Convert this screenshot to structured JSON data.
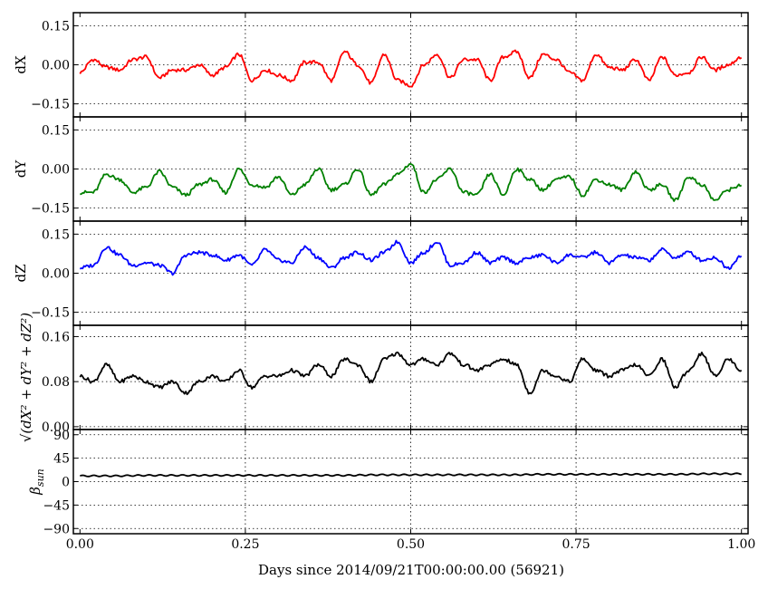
{
  "chart_data": {
    "type": "line",
    "xlabel": "Days since 2014/09/21T00:00:00.00 (56921)",
    "xlim": [
      -0.01,
      1.01
    ],
    "x_ticks": [
      0.0,
      0.25,
      0.5,
      0.75,
      1.0
    ],
    "x_tick_labels": [
      "0.00",
      "0.25",
      "0.50",
      "0.75",
      "1.00"
    ],
    "grid": true,
    "panels": [
      {
        "id": "dx",
        "ylabel": "dX",
        "ylim": [
          -0.2,
          0.2
        ],
        "y_ticks": [
          0.15,
          0.0,
          -0.15
        ],
        "y_tick_labels": [
          "0.15",
          "0.00",
          "−0.15"
        ],
        "color": "#ff0000",
        "series": [
          {
            "x": [
              0.0,
              0.02,
              0.04,
              0.06,
              0.08,
              0.1,
              0.12,
              0.14,
              0.16,
              0.18,
              0.2,
              0.22,
              0.24,
              0.26,
              0.28,
              0.3,
              0.32,
              0.34,
              0.36,
              0.38,
              0.4,
              0.42,
              0.44,
              0.46,
              0.48,
              0.5,
              0.52,
              0.54,
              0.56,
              0.58,
              0.6,
              0.62,
              0.64,
              0.66,
              0.68,
              0.7,
              0.72,
              0.74,
              0.76,
              0.78,
              0.8,
              0.82,
              0.84,
              0.86,
              0.88,
              0.9,
              0.92,
              0.94,
              0.96,
              0.98,
              1.0
            ],
            "values": [
              -0.03,
              0.02,
              -0.01,
              -0.02,
              0.02,
              0.03,
              -0.05,
              -0.02,
              -0.02,
              0.0,
              -0.04,
              -0.01,
              0.04,
              -0.06,
              -0.02,
              -0.04,
              -0.06,
              0.01,
              0.01,
              -0.06,
              0.05,
              0.0,
              -0.07,
              0.04,
              -0.06,
              -0.08,
              0.0,
              0.04,
              -0.05,
              0.02,
              0.02,
              -0.06,
              0.03,
              0.05,
              -0.05,
              0.04,
              0.02,
              -0.03,
              -0.06,
              0.04,
              -0.01,
              -0.02,
              0.02,
              -0.06,
              0.03,
              -0.04,
              -0.03,
              0.03,
              -0.02,
              0.0,
              0.03
            ]
          }
        ]
      },
      {
        "id": "dy",
        "ylabel": "dY",
        "ylim": [
          -0.2,
          0.2
        ],
        "y_ticks": [
          0.15,
          0.0,
          -0.15
        ],
        "y_tick_labels": [
          "0.15",
          "0.00",
          "−0.15"
        ],
        "color": "#008000",
        "series": [
          {
            "x": [
              0.0,
              0.02,
              0.04,
              0.06,
              0.08,
              0.1,
              0.12,
              0.14,
              0.16,
              0.18,
              0.2,
              0.22,
              0.24,
              0.26,
              0.28,
              0.3,
              0.32,
              0.34,
              0.36,
              0.38,
              0.4,
              0.42,
              0.44,
              0.46,
              0.48,
              0.5,
              0.52,
              0.54,
              0.56,
              0.58,
              0.6,
              0.62,
              0.64,
              0.66,
              0.68,
              0.7,
              0.72,
              0.74,
              0.76,
              0.78,
              0.8,
              0.82,
              0.84,
              0.86,
              0.88,
              0.9,
              0.92,
              0.94,
              0.96,
              0.98,
              1.0
            ],
            "values": [
              -0.09,
              -0.09,
              -0.02,
              -0.04,
              -0.09,
              -0.07,
              -0.01,
              -0.07,
              -0.1,
              -0.06,
              -0.04,
              -0.09,
              0.0,
              -0.06,
              -0.07,
              -0.03,
              -0.1,
              -0.06,
              0.0,
              -0.08,
              -0.06,
              0.0,
              -0.1,
              -0.06,
              -0.02,
              0.02,
              -0.09,
              -0.04,
              0.0,
              -0.09,
              -0.1,
              -0.02,
              -0.1,
              0.0,
              -0.04,
              -0.08,
              -0.04,
              -0.03,
              -0.1,
              -0.04,
              -0.06,
              -0.08,
              -0.01,
              -0.08,
              -0.06,
              -0.12,
              -0.03,
              -0.06,
              -0.12,
              -0.08,
              -0.06
            ]
          }
        ]
      },
      {
        "id": "dz",
        "ylabel": "dZ",
        "ylim": [
          -0.2,
          0.2
        ],
        "y_ticks": [
          0.15,
          0.0,
          -0.15
        ],
        "y_tick_labels": [
          "0.15",
          "0.00",
          "−0.15"
        ],
        "color": "#0000ff",
        "series": [
          {
            "x": [
              0.0,
              0.02,
              0.04,
              0.06,
              0.08,
              0.1,
              0.12,
              0.14,
              0.16,
              0.18,
              0.2,
              0.22,
              0.24,
              0.26,
              0.28,
              0.3,
              0.32,
              0.34,
              0.36,
              0.38,
              0.4,
              0.42,
              0.44,
              0.46,
              0.48,
              0.5,
              0.52,
              0.54,
              0.56,
              0.58,
              0.6,
              0.62,
              0.64,
              0.66,
              0.68,
              0.7,
              0.72,
              0.74,
              0.76,
              0.78,
              0.8,
              0.82,
              0.84,
              0.86,
              0.88,
              0.9,
              0.92,
              0.94,
              0.96,
              0.98,
              1.0
            ],
            "values": [
              0.02,
              0.03,
              0.1,
              0.07,
              0.03,
              0.04,
              0.03,
              0.0,
              0.07,
              0.08,
              0.07,
              0.05,
              0.07,
              0.03,
              0.09,
              0.05,
              0.04,
              0.1,
              0.06,
              0.02,
              0.06,
              0.08,
              0.05,
              0.08,
              0.12,
              0.04,
              0.08,
              0.12,
              0.03,
              0.04,
              0.08,
              0.04,
              0.06,
              0.04,
              0.06,
              0.07,
              0.04,
              0.07,
              0.06,
              0.08,
              0.04,
              0.07,
              0.06,
              0.05,
              0.09,
              0.06,
              0.08,
              0.05,
              0.06,
              0.02,
              0.07
            ]
          }
        ]
      },
      {
        "id": "magnitude",
        "ylabel": "√(dX² + dY² + dZ²)",
        "ylim": [
          -0.005,
          0.18
        ],
        "y_ticks": [
          0.16,
          0.08,
          0.0
        ],
        "y_tick_labels": [
          "0.16",
          "0.08",
          "0.00"
        ],
        "color": "#000000",
        "series": [
          {
            "x": [
              0.0,
              0.02,
              0.04,
              0.06,
              0.08,
              0.1,
              0.12,
              0.14,
              0.16,
              0.18,
              0.2,
              0.22,
              0.24,
              0.26,
              0.28,
              0.3,
              0.32,
              0.34,
              0.36,
              0.38,
              0.4,
              0.42,
              0.44,
              0.46,
              0.48,
              0.5,
              0.52,
              0.54,
              0.56,
              0.58,
              0.6,
              0.62,
              0.64,
              0.66,
              0.68,
              0.7,
              0.72,
              0.74,
              0.76,
              0.78,
              0.8,
              0.82,
              0.84,
              0.86,
              0.88,
              0.9,
              0.92,
              0.94,
              0.96,
              0.98,
              1.0
            ],
            "values": [
              0.09,
              0.08,
              0.11,
              0.08,
              0.09,
              0.08,
              0.07,
              0.08,
              0.06,
              0.08,
              0.09,
              0.08,
              0.1,
              0.07,
              0.09,
              0.09,
              0.1,
              0.09,
              0.11,
              0.09,
              0.12,
              0.11,
              0.08,
              0.12,
              0.13,
              0.11,
              0.12,
              0.11,
              0.13,
              0.11,
              0.1,
              0.11,
              0.12,
              0.11,
              0.06,
              0.1,
              0.09,
              0.08,
              0.12,
              0.1,
              0.09,
              0.1,
              0.11,
              0.09,
              0.12,
              0.07,
              0.1,
              0.13,
              0.09,
              0.12,
              0.1
            ]
          }
        ]
      },
      {
        "id": "beta",
        "ylabel": "β_sun",
        "ylim": [
          -100,
          100
        ],
        "y_ticks": [
          90,
          45,
          0,
          -45,
          -90
        ],
        "y_tick_labels": [
          "90",
          "45",
          "0",
          "−45",
          "−90"
        ],
        "color": "#000000",
        "series": [
          {
            "x": [
              0.0,
              0.05,
              0.1,
              0.15,
              0.2,
              0.25,
              0.3,
              0.35,
              0.4,
              0.45,
              0.5,
              0.55,
              0.6,
              0.65,
              0.7,
              0.75,
              0.8,
              0.85,
              0.9,
              0.95,
              1.0
            ],
            "values": [
              11,
              11,
              12,
              12,
              12,
              12,
              12,
              12,
              12,
              13,
              13,
              13,
              13,
              13,
              14,
              14,
              14,
              14,
              14,
              15,
              15
            ]
          }
        ]
      }
    ]
  }
}
